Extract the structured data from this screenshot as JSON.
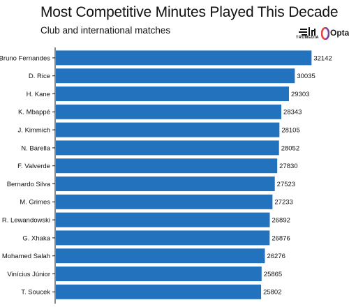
{
  "header": {
    "title": "Most Competitive Minutes Played This Decade",
    "subtitle": "Club and international matches"
  },
  "logos": {
    "truemedia": "TRUMEDIA",
    "opta": "Opta",
    "opta_accent": "#e8433f",
    "opta_accent2": "#7b3fa0"
  },
  "colors": {
    "bar": "#2272bd"
  },
  "chart_data": {
    "type": "bar",
    "orientation": "horizontal",
    "title": "Most Competitive Minutes Played This Decade",
    "subtitle": "Club and international matches",
    "xlabel": "",
    "ylabel": "",
    "grid": false,
    "categories": [
      "Bruno Fernandes",
      "D. Rice",
      "H. Kane",
      "K. Mbappé",
      "J. Kimmich",
      "N. Barella",
      "F. Valverde",
      "Bernardo Silva",
      "M. Grimes",
      "R. Lewandowski",
      "G. Xhaka",
      "Mohamed Salah",
      "Vinícius Júnior",
      "T. Soucek"
    ],
    "values": [
      32142,
      30035,
      29303,
      28343,
      28105,
      28052,
      27830,
      27523,
      27233,
      26892,
      26876,
      26276,
      25865,
      25802
    ],
    "xlim": [
      0,
      36500
    ]
  }
}
